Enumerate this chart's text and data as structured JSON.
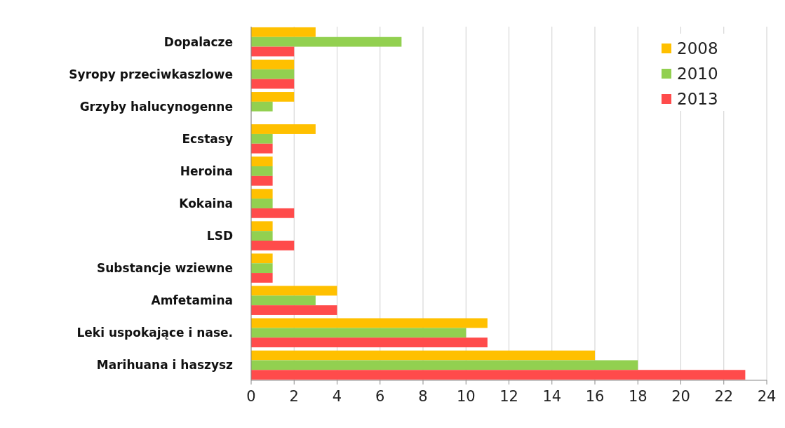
{
  "chart_data": {
    "type": "bar",
    "orientation": "horizontal",
    "categories": [
      "Dopalacze",
      "Syropy przeciwkaszlowe",
      "Grzyby halucynogenne",
      "Ecstasy",
      "Heroina",
      "Kokaina",
      "LSD",
      "Substancje wziewne",
      "Amfetamina",
      "Leki uspokające i nase.",
      "Marihuana i haszysz"
    ],
    "series": [
      {
        "name": "2008",
        "color": "#ffc000",
        "values": [
          3,
          2,
          2,
          3,
          1,
          1,
          1,
          1,
          4,
          11,
          16
        ]
      },
      {
        "name": "2010",
        "color": "#92d050",
        "values": [
          7,
          2,
          1,
          1,
          1,
          1,
          1,
          1,
          3,
          10,
          18
        ]
      },
      {
        "name": "2013",
        "color": "#ff4b4b",
        "values": [
          2,
          2,
          null,
          1,
          1,
          2,
          2,
          1,
          4,
          11,
          23
        ]
      }
    ],
    "xlim": [
      0,
      24
    ],
    "xticks": [
      0,
      2,
      4,
      6,
      8,
      10,
      12,
      14,
      16,
      18,
      20,
      22,
      24
    ],
    "grid": "x",
    "legend": "top right"
  }
}
